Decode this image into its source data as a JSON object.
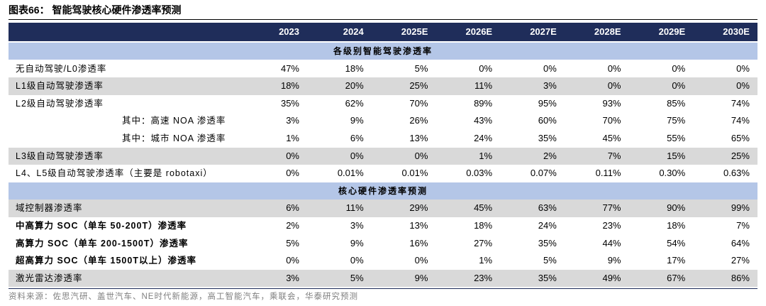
{
  "title": "图表66：  智能驾驶核心硬件渗透率预测",
  "table": {
    "columns": [
      "2023",
      "2024",
      "2025E",
      "2026E",
      "2027E",
      "2028E",
      "2029E",
      "2030E"
    ],
    "sections": [
      {
        "heading": "各级别智能驾驶渗透率",
        "rows": [
          {
            "label": "无自动驾驶/L0渗透率",
            "values": [
              "47%",
              "18%",
              "5%",
              "0%",
              "0%",
              "0%",
              "0%",
              "0%"
            ]
          },
          {
            "label": "L1级自动驾驶渗透率",
            "values": [
              "18%",
              "20%",
              "25%",
              "11%",
              "3%",
              "0%",
              "0%",
              "0%"
            ]
          },
          {
            "label": "L2级自动驾驶渗透率",
            "values": [
              "35%",
              "62%",
              "70%",
              "89%",
              "95%",
              "93%",
              "85%",
              "74%"
            ]
          },
          {
            "label": "其中：高速 NOA 渗透率",
            "values": [
              "3%",
              "9%",
              "26%",
              "43%",
              "60%",
              "70%",
              "75%",
              "74%"
            ]
          },
          {
            "label": "其中：城市 NOA 渗透率",
            "values": [
              "1%",
              "6%",
              "13%",
              "24%",
              "35%",
              "45%",
              "55%",
              "65%"
            ]
          },
          {
            "label": "L3级自动驾驶渗透率",
            "values": [
              "0%",
              "0%",
              "0%",
              "1%",
              "2%",
              "7%",
              "15%",
              "25%"
            ]
          },
          {
            "label": "L4、L5级自动驾驶渗透率（主要是 robotaxi）",
            "values": [
              "0%",
              "0.01%",
              "0.01%",
              "0.03%",
              "0.07%",
              "0.11%",
              "0.30%",
              "0.63%"
            ]
          }
        ]
      },
      {
        "heading": "核心硬件渗透率预测",
        "rows": [
          {
            "label": "域控制器渗透率",
            "values": [
              "6%",
              "11%",
              "29%",
              "45%",
              "63%",
              "77%",
              "90%",
              "99%"
            ]
          },
          {
            "label": "中高算力 SOC（单车 50-200T）渗透率",
            "values": [
              "2%",
              "3%",
              "13%",
              "18%",
              "24%",
              "23%",
              "18%",
              "7%"
            ]
          },
          {
            "label": "高算力 SOC（单车 200-1500T）渗透率",
            "values": [
              "5%",
              "9%",
              "16%",
              "27%",
              "35%",
              "44%",
              "54%",
              "64%"
            ]
          },
          {
            "label": "超高算力 SOC（单车 1500T以上）渗透率",
            "values": [
              "0%",
              "0%",
              "0%",
              "1%",
              "5%",
              "9%",
              "17%",
              "27%"
            ]
          },
          {
            "label": "激光雷达渗透率",
            "values": [
              "3%",
              "5%",
              "9%",
              "23%",
              "35%",
              "49%",
              "67%",
              "86%"
            ]
          }
        ]
      }
    ]
  },
  "source": "资料来源：佐思汽研、盖世汽车、NE时代新能源，高工智能汽车，乘联会，华泰研究预测"
}
